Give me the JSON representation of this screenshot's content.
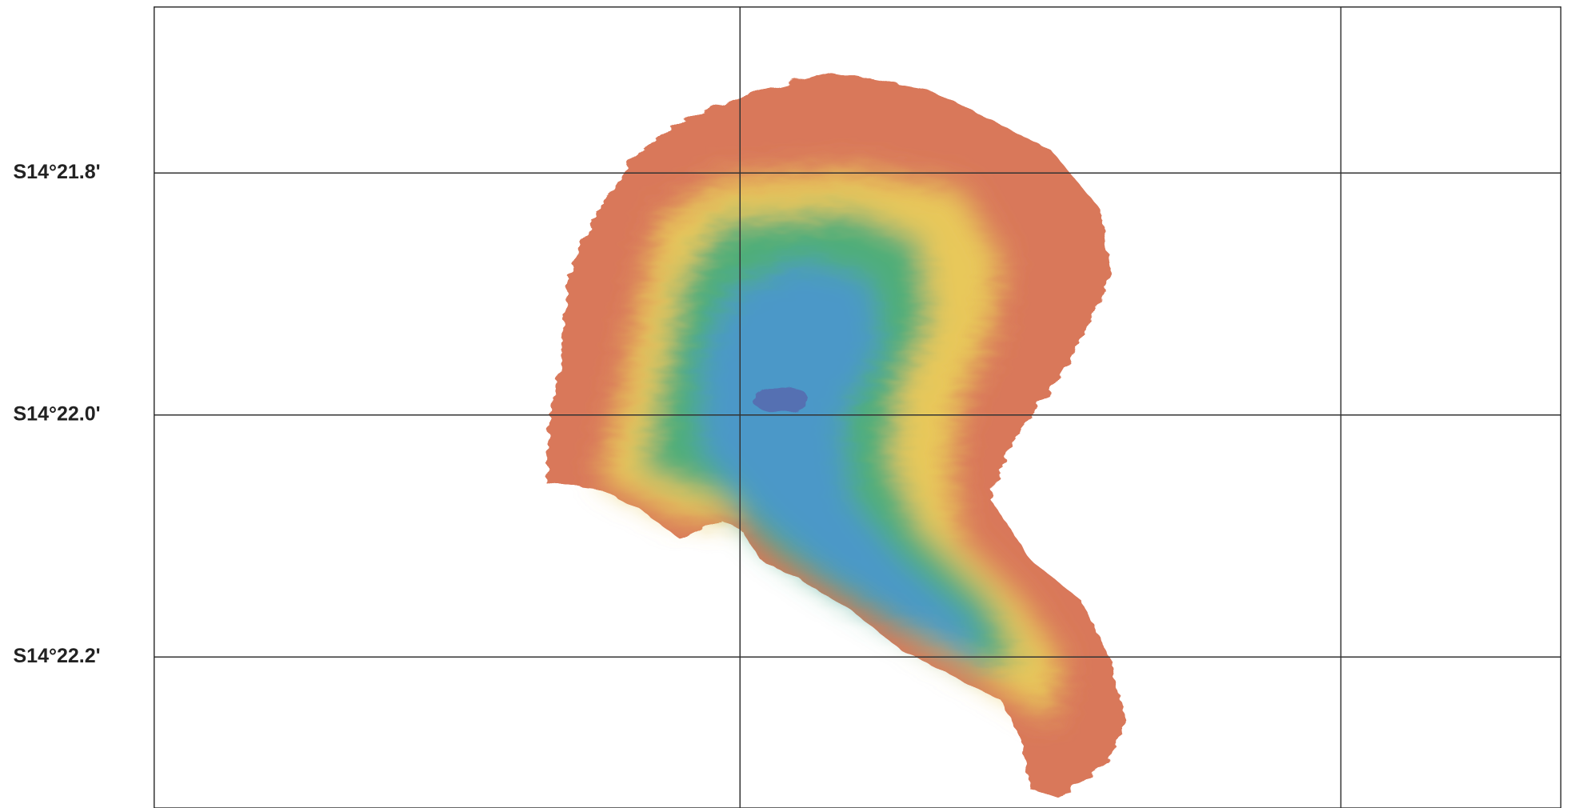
{
  "latitude_labels": [
    "S14°21.8'",
    "S14°22.0'",
    "S14°22.2'"
  ]
}
